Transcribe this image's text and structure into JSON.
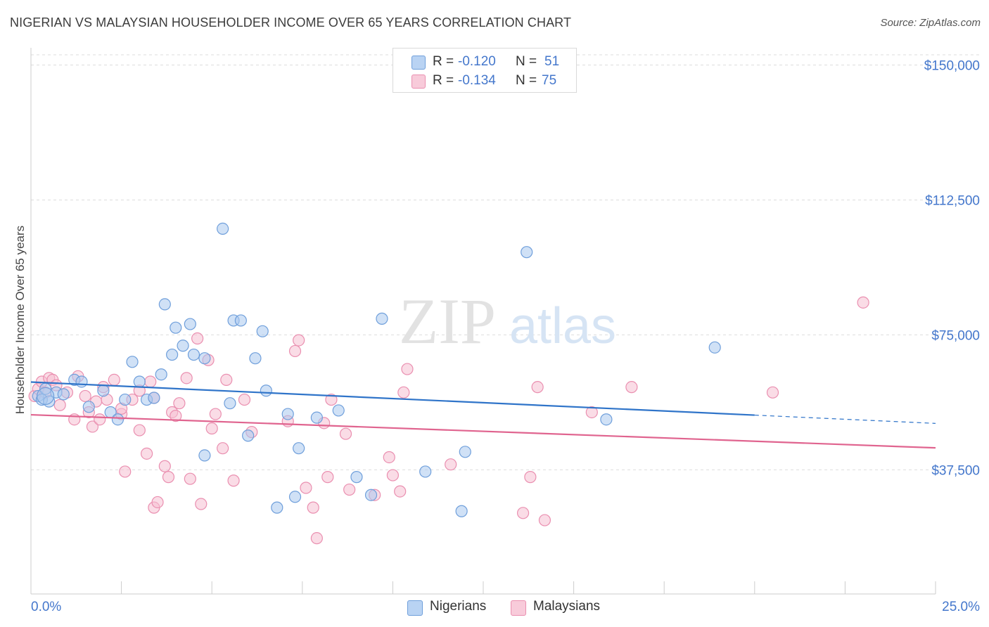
{
  "title": "NIGERIAN VS MALAYSIAN HOUSEHOLDER INCOME OVER 65 YEARS CORRELATION CHART",
  "source": "Source: ZipAtlas.com",
  "watermark": {
    "zip": "ZIP",
    "atlas": "atlas"
  },
  "stats": {
    "nigerians": {
      "r_label": "R =",
      "r_value": "-0.120",
      "n_label": "N =",
      "n_value": "51"
    },
    "malaysians": {
      "r_label": "R =",
      "r_value": "-0.134",
      "n_label": "N =",
      "n_value": "75"
    }
  },
  "legend": {
    "nigerians": "Nigerians",
    "malaysians": "Malaysians"
  },
  "colors": {
    "blue_fill": "#a9c8ee",
    "blue_stroke": "#6f9fdb",
    "blue_line": "#2f74c9",
    "pink_fill": "#f6bfd1",
    "pink_stroke": "#ea8fb0",
    "pink_line": "#e0648f",
    "axis_text": "#4477cc",
    "grid": "#dddddd"
  },
  "chart_data": {
    "type": "scatter",
    "title": "NIGERIAN VS MALAYSIAN HOUSEHOLDER INCOME OVER 65 YEARS CORRELATION CHART",
    "xlabel": "",
    "ylabel": "Householder Income Over 65 years",
    "xlim": [
      0,
      25
    ],
    "ylim": [
      3000,
      154000
    ],
    "x_tick_labels": [
      "0.0%",
      "25.0%"
    ],
    "y_ticks": [
      37500,
      75000,
      112500,
      150000
    ],
    "y_tick_labels": [
      "$37,500",
      "$75,000",
      "$112,500",
      "$150,000"
    ],
    "grid": true,
    "legend_position": "bottom-center",
    "series": [
      {
        "name": "Nigerians",
        "trend": {
          "x0": 0,
          "y0": 61900,
          "x1": 20,
          "y1": 52700,
          "dashed_to_x": 25,
          "dashed_to_y": 50400
        },
        "points": [
          [
            0.2,
            58000
          ],
          [
            0.3,
            57000
          ],
          [
            0.4,
            60000
          ],
          [
            0.5,
            56500
          ],
          [
            0.7,
            59000
          ],
          [
            0.9,
            58500
          ],
          [
            1.2,
            62500
          ],
          [
            1.4,
            62000
          ],
          [
            1.6,
            55000
          ],
          [
            2.0,
            59500
          ],
          [
            2.2,
            53500
          ],
          [
            2.4,
            51500
          ],
          [
            2.6,
            57000
          ],
          [
            2.8,
            67500
          ],
          [
            3.0,
            62000
          ],
          [
            3.2,
            57000
          ],
          [
            3.4,
            57500
          ],
          [
            3.6,
            64000
          ],
          [
            3.7,
            83500
          ],
          [
            3.9,
            69500
          ],
          [
            4.0,
            77000
          ],
          [
            4.2,
            72000
          ],
          [
            4.4,
            78000
          ],
          [
            4.5,
            69500
          ],
          [
            4.8,
            68500
          ],
          [
            4.8,
            41500
          ],
          [
            5.3,
            104500
          ],
          [
            5.5,
            56000
          ],
          [
            5.6,
            79000
          ],
          [
            5.8,
            79000
          ],
          [
            6.0,
            47000
          ],
          [
            6.2,
            68500
          ],
          [
            6.4,
            76000
          ],
          [
            6.5,
            59500
          ],
          [
            6.8,
            27000
          ],
          [
            7.1,
            53000
          ],
          [
            7.3,
            30000
          ],
          [
            7.4,
            43500
          ],
          [
            7.9,
            52000
          ],
          [
            8.5,
            54000
          ],
          [
            9.0,
            35500
          ],
          [
            9.4,
            30500
          ],
          [
            9.7,
            79500
          ],
          [
            10.9,
            37000
          ],
          [
            11.9,
            26000
          ],
          [
            12.0,
            42500
          ],
          [
            13.7,
            98000
          ],
          [
            15.9,
            51500
          ],
          [
            18.9,
            71500
          ]
        ]
      },
      {
        "name": "Malaysians",
        "trend": {
          "x0": 0,
          "y0": 52800,
          "x1": 25,
          "y1": 43600
        },
        "points": [
          [
            0.1,
            58000
          ],
          [
            0.2,
            60000
          ],
          [
            0.3,
            62000
          ],
          [
            0.4,
            59000
          ],
          [
            0.5,
            63000
          ],
          [
            0.6,
            62500
          ],
          [
            0.7,
            61000
          ],
          [
            0.8,
            55500
          ],
          [
            1.0,
            59000
          ],
          [
            1.2,
            51500
          ],
          [
            1.3,
            63500
          ],
          [
            1.5,
            58000
          ],
          [
            1.6,
            53500
          ],
          [
            1.7,
            49500
          ],
          [
            1.8,
            56500
          ],
          [
            1.9,
            51500
          ],
          [
            2.0,
            60500
          ],
          [
            2.1,
            57000
          ],
          [
            2.3,
            62500
          ],
          [
            2.5,
            53000
          ],
          [
            2.5,
            54500
          ],
          [
            2.6,
            37000
          ],
          [
            2.8,
            57000
          ],
          [
            3.0,
            59500
          ],
          [
            3.0,
            48500
          ],
          [
            3.2,
            42000
          ],
          [
            3.3,
            62000
          ],
          [
            3.4,
            57500
          ],
          [
            3.4,
            27000
          ],
          [
            3.5,
            28500
          ],
          [
            3.7,
            38500
          ],
          [
            3.8,
            35500
          ],
          [
            3.9,
            53500
          ],
          [
            4.0,
            52500
          ],
          [
            4.1,
            56000
          ],
          [
            4.3,
            63000
          ],
          [
            4.4,
            35000
          ],
          [
            4.6,
            74000
          ],
          [
            4.7,
            28000
          ],
          [
            4.9,
            68000
          ],
          [
            5.0,
            49000
          ],
          [
            5.1,
            53000
          ],
          [
            5.3,
            43500
          ],
          [
            5.4,
            62500
          ],
          [
            5.6,
            34500
          ],
          [
            5.9,
            57000
          ],
          [
            6.1,
            48000
          ],
          [
            7.1,
            51000
          ],
          [
            7.3,
            70500
          ],
          [
            7.4,
            73500
          ],
          [
            7.6,
            32500
          ],
          [
            7.8,
            27000
          ],
          [
            7.9,
            18500
          ],
          [
            8.1,
            50500
          ],
          [
            8.2,
            35500
          ],
          [
            8.3,
            57000
          ],
          [
            8.7,
            47500
          ],
          [
            8.8,
            32000
          ],
          [
            9.5,
            30500
          ],
          [
            9.9,
            41000
          ],
          [
            10.0,
            36000
          ],
          [
            10.2,
            31500
          ],
          [
            10.3,
            59000
          ],
          [
            10.4,
            65500
          ],
          [
            11.6,
            39000
          ],
          [
            13.6,
            25500
          ],
          [
            13.8,
            35500
          ],
          [
            14.0,
            60500
          ],
          [
            14.2,
            23500
          ],
          [
            15.5,
            53500
          ],
          [
            16.6,
            60500
          ],
          [
            20.5,
            59000
          ],
          [
            23.0,
            84000
          ]
        ]
      }
    ]
  }
}
